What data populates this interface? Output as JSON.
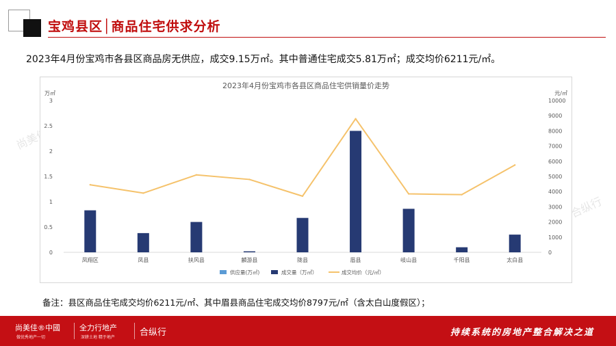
{
  "header": {
    "title": "宝鸡县区│商品住宅供求分析"
  },
  "summary": "2023年4月份宝鸡市各县区商品房无供应，成交9.15万㎡。其中普通住宅成交5.81万㎡；成交均价6211元/㎡。",
  "note": "备注：县区商品住宅成交均价6211元/㎡、其中眉县商品住宅成交均价8797元/㎡（含太白山度假区）；",
  "footer": {
    "logo1": "尚美佳®中國",
    "logo1_sub": "做优秀地产一切",
    "logo2": "全力行地产",
    "logo2_sub": "深耕土地 精于地产",
    "logo3": "合纵行",
    "slogan": "持续系统的房地产整合解决之道"
  },
  "watermarks": [
    "尚美佳",
    "合纵行"
  ],
  "colors": {
    "brand_red": "#c00d0d",
    "footer_red": "#c40f14",
    "supply": "#5b9bd5",
    "sales": "#263a73",
    "price": "#f5c26b"
  },
  "chart_data": {
    "type": "bar+line",
    "title": "2023年4月份宝鸡市各县区商品住宅供销量价走势",
    "y_left_unit": "万㎡",
    "y_right_unit": "元/㎡",
    "y_left_ticks": [
      "0",
      "0.5",
      "1",
      "1.5",
      "2",
      "2.5",
      "3"
    ],
    "y_right_ticks": [
      "0",
      "1000",
      "2000",
      "3000",
      "4000",
      "5000",
      "6000",
      "7000",
      "8000",
      "9000",
      "10000"
    ],
    "ylim_left": [
      0,
      3
    ],
    "ylim_right": [
      0,
      10000
    ],
    "categories": [
      "凤翔区",
      "凤县",
      "扶风县",
      "麟游县",
      "陇县",
      "眉县",
      "岐山县",
      "千阳县",
      "太白县"
    ],
    "series": [
      {
        "name": "供应量(万㎡)",
        "type": "bar",
        "axis": "left",
        "values": [
          0,
          0,
          0,
          0,
          0,
          0,
          0,
          0,
          0
        ]
      },
      {
        "name": "成交量（万㎡）",
        "type": "bar",
        "axis": "left",
        "values": [
          0.83,
          0.38,
          0.6,
          0.02,
          0.68,
          2.4,
          0.86,
          0.1,
          0.35
        ]
      },
      {
        "name": "成交均价（元/㎡）",
        "type": "line",
        "axis": "right",
        "values": [
          4450,
          3900,
          5100,
          4800,
          3700,
          8797,
          3850,
          3800,
          5750
        ]
      }
    ],
    "grid": false,
    "legend": "bottom"
  }
}
